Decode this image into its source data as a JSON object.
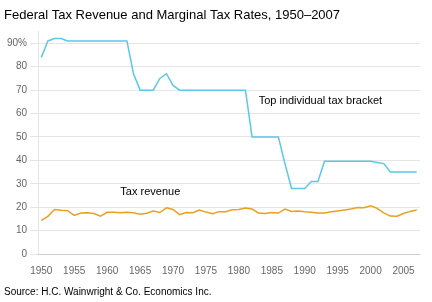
{
  "chart_data": {
    "type": "line",
    "title": "Federal Tax Revenue and Marginal Tax Rates, 1950–2007",
    "source": "Source: H.C. Wainwright & Co. Economics Inc.",
    "x": [
      1950,
      1951,
      1952,
      1953,
      1954,
      1955,
      1956,
      1957,
      1958,
      1959,
      1960,
      1961,
      1962,
      1963,
      1964,
      1965,
      1966,
      1967,
      1968,
      1969,
      1970,
      1971,
      1972,
      1973,
      1974,
      1975,
      1976,
      1977,
      1978,
      1979,
      1980,
      1981,
      1982,
      1983,
      1984,
      1985,
      1986,
      1987,
      1988,
      1989,
      1990,
      1991,
      1992,
      1993,
      1994,
      1995,
      1996,
      1997,
      1998,
      1999,
      2000,
      2001,
      2002,
      2003,
      2004,
      2005,
      2006,
      2007
    ],
    "series": [
      {
        "color": "#5BC8E8",
        "values": [
          84,
          91,
          92,
          92,
          91,
          91,
          91,
          91,
          91,
          91,
          91,
          91,
          91,
          91,
          77,
          70,
          70,
          70,
          75,
          77,
          72,
          70,
          70,
          70,
          70,
          70,
          70,
          70,
          70,
          70,
          70,
          70,
          50,
          50,
          50,
          50,
          50,
          38.5,
          28,
          28,
          28,
          31,
          31,
          39.6,
          39.6,
          39.6,
          39.6,
          39.6,
          39.6,
          39.6,
          39.6,
          39.1,
          38.6,
          35,
          35,
          35,
          35,
          35
        ]
      },
      {
        "color": "#E8A020",
        "values": [
          14.4,
          16.1,
          19.0,
          18.7,
          18.5,
          16.5,
          17.5,
          17.6,
          17.3,
          16.2,
          17.8,
          17.8,
          17.6,
          17.8,
          17.6,
          17.0,
          17.4,
          18.4,
          17.7,
          19.7,
          19.0,
          16.8,
          17.7,
          17.6,
          18.8,
          17.9,
          17.2,
          18.1,
          18.1,
          18.9,
          19.0,
          19.6,
          19.2,
          17.5,
          17.3,
          17.7,
          17.5,
          19.2,
          18.2,
          18.4,
          18.0,
          17.8,
          17.5,
          17.5,
          18.0,
          18.4,
          18.8,
          19.2,
          19.9,
          19.8,
          20.6,
          19.5,
          17.6,
          16.2,
          16.1,
          17.3,
          18.2,
          18.8
        ]
      }
    ],
    "annotations": [
      {
        "text": "Top individual tax bracket",
        "x": 1983,
        "y": 63
      },
      {
        "text": "Tax revenue",
        "x": 1962,
        "y": 24
      }
    ],
    "xlim": [
      1949.5,
      2007.5
    ],
    "ylim": [
      0,
      95
    ],
    "xticks": [
      1950,
      1955,
      1960,
      1965,
      1970,
      1975,
      1980,
      1985,
      1990,
      1995,
      2000,
      2005
    ],
    "yticks": [
      0,
      10,
      20,
      30,
      40,
      50,
      60,
      70,
      80,
      {
        "value": 90,
        "label": "90%"
      }
    ],
    "grid": true
  }
}
